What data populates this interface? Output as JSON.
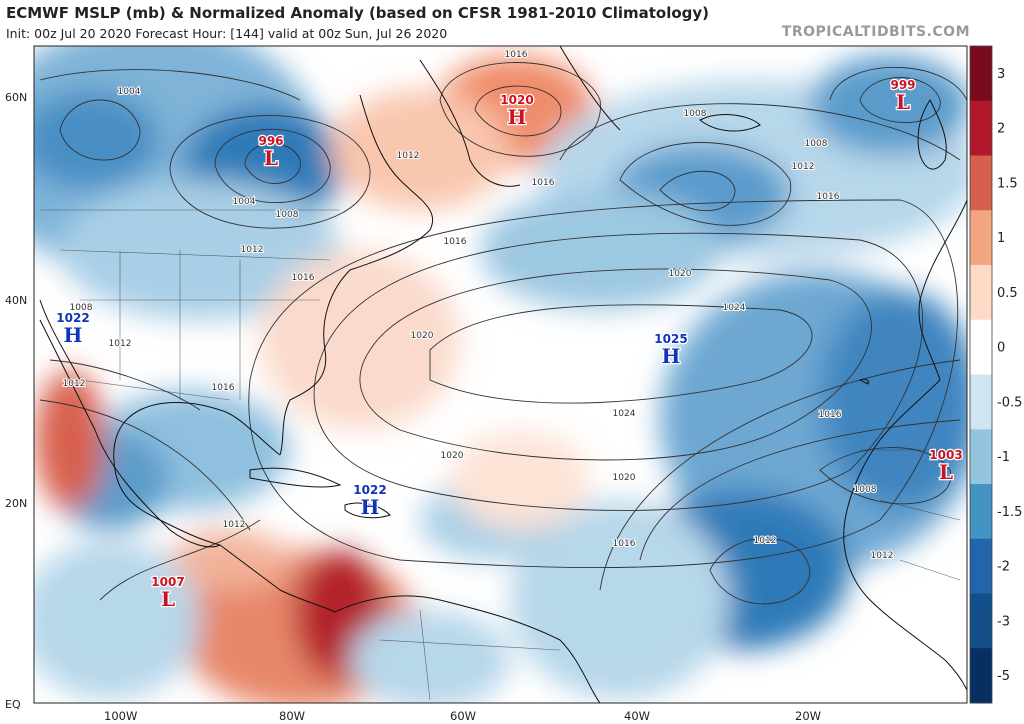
{
  "header": {
    "title": "ECMWF MSLP (mb) & Normalized Anomaly (based on CFSR 1981-2010 Climatology)",
    "subtitle": "Init: 00z Jul 20 2020   Forecast Hour: [144]   valid at 00z Sun, Jul 26 2020",
    "brand": "TROPICALTIDBITS.COM"
  },
  "axes": {
    "lat_labels": [
      "60N",
      "40N",
      "20N",
      "EQ"
    ],
    "lon_labels": [
      "100W",
      "80W",
      "60W",
      "40W",
      "20W"
    ]
  },
  "colorbar": {
    "labels": [
      "3",
      "2",
      "1.5",
      "1",
      "0.5",
      "0",
      "-0.5",
      "-1",
      "-1.5",
      "-2",
      "-3",
      "-5"
    ],
    "colors": [
      "#7a0a1e",
      "#b2182b",
      "#d6604d",
      "#f4a582",
      "#fddbc7",
      "#ffffff",
      "#d1e5f0",
      "#92c5de",
      "#4393c3",
      "#2166ac",
      "#124e8a",
      "#053061"
    ]
  },
  "pressure_centers": [
    {
      "type": "H",
      "value": "1020",
      "color": "#cc1122",
      "name": "high-greenland"
    },
    {
      "type": "L",
      "value": "996",
      "color": "#cc1122",
      "name": "low-hudson"
    },
    {
      "type": "L",
      "value": "999",
      "color": "#cc1122",
      "name": "low-uk"
    },
    {
      "type": "H",
      "value": "1022",
      "color": "#1133bb",
      "name": "high-baja"
    },
    {
      "type": "H",
      "value": "1025",
      "color": "#1133bb",
      "name": "high-azores"
    },
    {
      "type": "H",
      "value": "1022",
      "color": "#1133bb",
      "name": "high-caribbean"
    },
    {
      "type": "L",
      "value": "1003",
      "color": "#cc1122",
      "name": "low-sahara"
    },
    {
      "type": "L",
      "value": "1007",
      "color": "#cc1122",
      "name": "low-epac"
    }
  ],
  "isobar_labels": [
    "1016",
    "1004",
    "1008",
    "1012",
    "1016",
    "1016",
    "1008",
    "1008",
    "1012",
    "1016",
    "1004",
    "1012",
    "1016",
    "1020",
    "1024",
    "1008",
    "1012",
    "1020",
    "1024",
    "1020",
    "1020",
    "1016",
    "1016",
    "1012",
    "1012",
    "1008",
    "1012",
    "1012",
    "1016"
  ]
}
